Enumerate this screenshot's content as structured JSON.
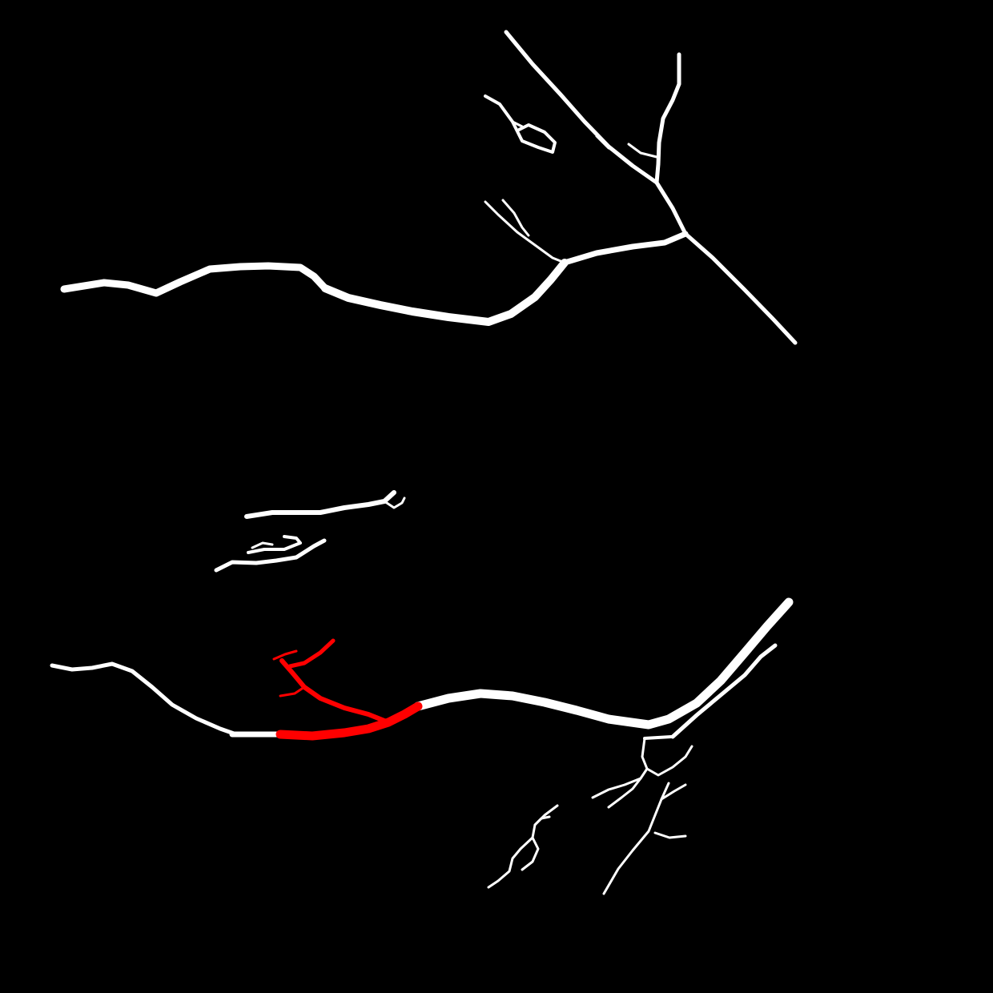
{
  "image": {
    "kind": "vessel-segmentation-mask",
    "background_color": "#000000",
    "vessel_color": "#ffffff",
    "highlight_color": "#ff0000",
    "highlighted_segment": "lower-arcade-branch"
  }
}
